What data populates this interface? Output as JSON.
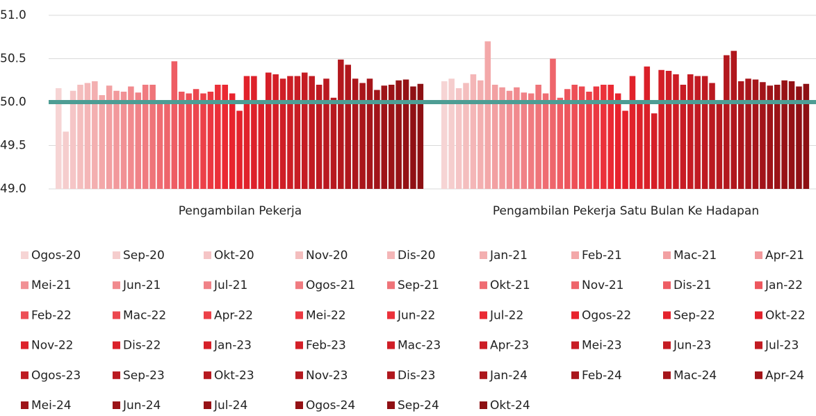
{
  "chart_data": {
    "type": "bar",
    "categories": [
      "Pengambilan Pekerja",
      "Pengambilan Pekerja Satu Bulan Ke Hadapan"
    ],
    "ylim": [
      49,
      51
    ],
    "yticks": [
      {
        "value": 49,
        "label": "49.0"
      },
      49.5,
      {
        "value": 50,
        "label": "50.0"
      },
      50.5,
      {
        "value": 51,
        "label": "51.0"
      }
    ],
    "grid": true,
    "reference_line": {
      "value": 50,
      "color": "#4e9d94"
    },
    "legend": "bottom",
    "series": [
      {
        "name": "Ogos-20",
        "color": "#f6d4d4",
        "values": [
          50.16,
          50.24
        ]
      },
      {
        "name": "Sep-20",
        "color": "#f5cdcd",
        "values": [
          49.66,
          50.27
        ]
      },
      {
        "name": "Okt-20",
        "color": "#f5c5c6",
        "values": [
          50.13,
          50.16
        ]
      },
      {
        "name": "Nov-20",
        "color": "#f4bebe",
        "values": [
          50.2,
          50.22
        ]
      },
      {
        "name": "Dis-20",
        "color": "#f4b6b7",
        "values": [
          50.22,
          50.32
        ]
      },
      {
        "name": "Jan-21",
        "color": "#f3afb0",
        "values": [
          50.24,
          50.25
        ]
      },
      {
        "name": "Feb-21",
        "color": "#f3a8a9",
        "values": [
          50.08,
          50.7
        ]
      },
      {
        "name": "Mac-21",
        "color": "#f2a0a2",
        "values": [
          50.19,
          50.2
        ]
      },
      {
        "name": "Apr-21",
        "color": "#f2999c",
        "values": [
          50.13,
          50.17
        ]
      },
      {
        "name": "Mei-21",
        "color": "#f19195",
        "values": [
          50.12,
          50.13
        ]
      },
      {
        "name": "Jun-21",
        "color": "#f18a8e",
        "values": [
          50.18,
          50.17
        ]
      },
      {
        "name": "Jul-21",
        "color": "#f08287",
        "values": [
          50.11,
          50.11
        ]
      },
      {
        "name": "Ogos-21",
        "color": "#f07b80",
        "values": [
          50.2,
          50.1
        ]
      },
      {
        "name": "Sep-21",
        "color": "#ef7479",
        "values": [
          50.2,
          50.2
        ]
      },
      {
        "name": "Okt-21",
        "color": "#ef6c72",
        "values": [
          50.02,
          50.1
        ]
      },
      {
        "name": "Nov-21",
        "color": "#ee656b",
        "values": [
          50.0,
          50.5
        ]
      },
      {
        "name": "Dis-21",
        "color": "#ee5d64",
        "values": [
          50.47,
          50.05
        ]
      },
      {
        "name": "Jan-22",
        "color": "#ed565d",
        "values": [
          50.12,
          50.15
        ]
      },
      {
        "name": "Feb-22",
        "color": "#ed4f56",
        "values": [
          50.1,
          50.2
        ]
      },
      {
        "name": "Mac-22",
        "color": "#ec474f",
        "values": [
          50.15,
          50.18
        ]
      },
      {
        "name": "Apr-22",
        "color": "#ec4048",
        "values": [
          50.1,
          50.12
        ]
      },
      {
        "name": "Mei-22",
        "color": "#eb3841",
        "values": [
          50.12,
          50.18
        ]
      },
      {
        "name": "Jun-22",
        "color": "#eb313a",
        "values": [
          50.2,
          50.2
        ]
      },
      {
        "name": "Jul-22",
        "color": "#ea2a33",
        "values": [
          50.2,
          50.2
        ]
      },
      {
        "name": "Ogos-22",
        "color": "#e8232d",
        "values": [
          50.1,
          50.1
        ]
      },
      {
        "name": "Sep-22",
        "color": "#e4222c",
        "values": [
          49.9,
          49.9
        ]
      },
      {
        "name": "Okt-22",
        "color": "#e1222b",
        "values": [
          50.3,
          50.3
        ]
      },
      {
        "name": "Nov-22",
        "color": "#dd212a",
        "values": [
          50.3,
          50.0
        ]
      },
      {
        "name": "Dis-22",
        "color": "#da2029",
        "values": [
          50.0,
          50.41
        ]
      },
      {
        "name": "Jan-23",
        "color": "#d61f28",
        "values": [
          50.34,
          49.87
        ]
      },
      {
        "name": "Feb-23",
        "color": "#d31f27",
        "values": [
          50.32,
          50.37
        ]
      },
      {
        "name": "Mac-23",
        "color": "#cf1e26",
        "values": [
          50.27,
          50.36
        ]
      },
      {
        "name": "Apr-23",
        "color": "#cc1d25",
        "values": [
          50.3,
          50.32
        ]
      },
      {
        "name": "Mei-23",
        "color": "#c81c24",
        "values": [
          50.3,
          50.2
        ]
      },
      {
        "name": "Jun-23",
        "color": "#c51c23",
        "values": [
          50.34,
          50.32
        ]
      },
      {
        "name": "Jul-23",
        "color": "#c11b22",
        "values": [
          50.3,
          50.3
        ]
      },
      {
        "name": "Ogos-23",
        "color": "#be1a21",
        "values": [
          50.2,
          50.3
        ]
      },
      {
        "name": "Sep-23",
        "color": "#ba1920",
        "values": [
          50.27,
          50.22
        ]
      },
      {
        "name": "Okt-23",
        "color": "#b7191f",
        "values": [
          50.05,
          50.0
        ]
      },
      {
        "name": "Nov-23",
        "color": "#b3181e",
        "values": [
          50.49,
          50.54
        ]
      },
      {
        "name": "Dis-23",
        "color": "#b0171d",
        "values": [
          50.43,
          50.59
        ]
      },
      {
        "name": "Jan-24",
        "color": "#ac161c",
        "values": [
          50.27,
          50.24
        ]
      },
      {
        "name": "Feb-24",
        "color": "#a9161b",
        "values": [
          50.22,
          50.27
        ]
      },
      {
        "name": "Mac-24",
        "color": "#a5151a",
        "values": [
          50.27,
          50.26
        ]
      },
      {
        "name": "Apr-24",
        "color": "#a21419",
        "values": [
          50.14,
          50.23
        ]
      },
      {
        "name": "Mei-24",
        "color": "#9e1318",
        "values": [
          50.19,
          50.19
        ]
      },
      {
        "name": "Jun-24",
        "color": "#9b1317",
        "values": [
          50.2,
          50.2
        ]
      },
      {
        "name": "Jul-24",
        "color": "#971216",
        "values": [
          50.25,
          50.25
        ]
      },
      {
        "name": "Ogos-24",
        "color": "#941115",
        "values": [
          50.26,
          50.24
        ]
      },
      {
        "name": "Sep-24",
        "color": "#901014",
        "values": [
          50.18,
          50.18
        ]
      },
      {
        "name": "Okt-24",
        "color": "#8d1013",
        "values": [
          50.21,
          50.21
        ]
      }
    ]
  }
}
